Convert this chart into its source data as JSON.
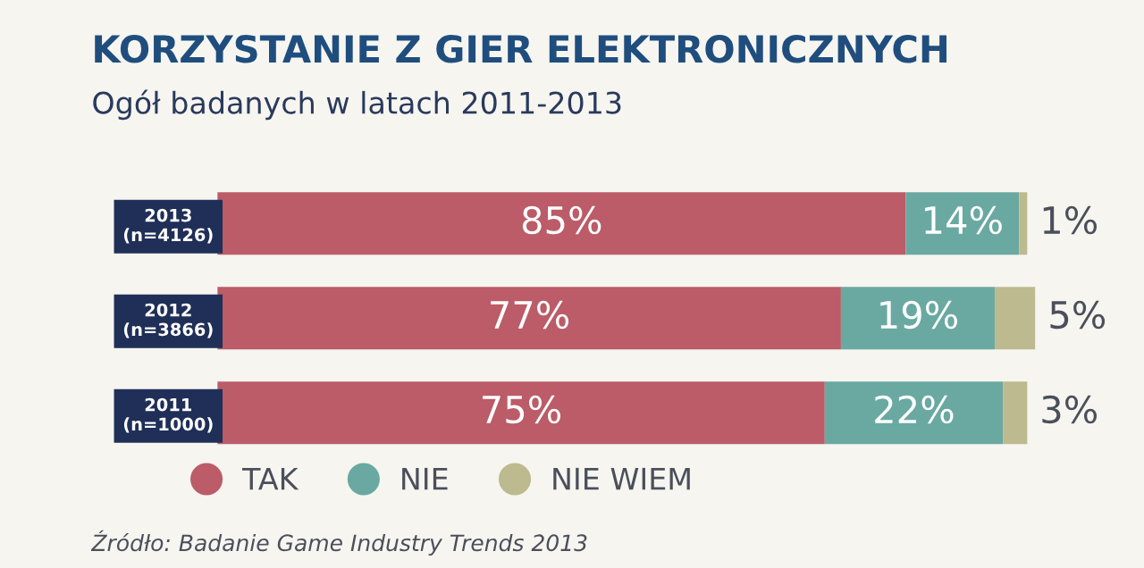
{
  "chart_data": {
    "type": "bar",
    "orientation": "horizontal",
    "stacked": true,
    "legend": "bottom",
    "title": "KORZYSTANIE Z GIER ELEKTRONICZNYCH",
    "subtitle": "Ogół badanych w latach 2011-2013",
    "categories": [
      "2013\n(n=4126)",
      "2012\n(n=3866)",
      "2011\n(n=1000)"
    ],
    "series": [
      {
        "name": "TAK",
        "color": "#bb5c68",
        "values": [
          85,
          77,
          75
        ],
        "value_labels": [
          "85%",
          "77%",
          "75%"
        ]
      },
      {
        "name": "NIE",
        "color": "#6aa9a2",
        "values": [
          14,
          19,
          22
        ],
        "value_labels": [
          "14%",
          "19%",
          "22%"
        ]
      },
      {
        "name": "NIE WIEM",
        "color": "#bcba8e",
        "values": [
          1,
          5,
          3
        ],
        "value_labels": [
          "1%",
          "5%",
          "3%"
        ]
      }
    ],
    "annotations": [
      "Źródło: Badanie Game Industry Trends 2013"
    ]
  }
}
